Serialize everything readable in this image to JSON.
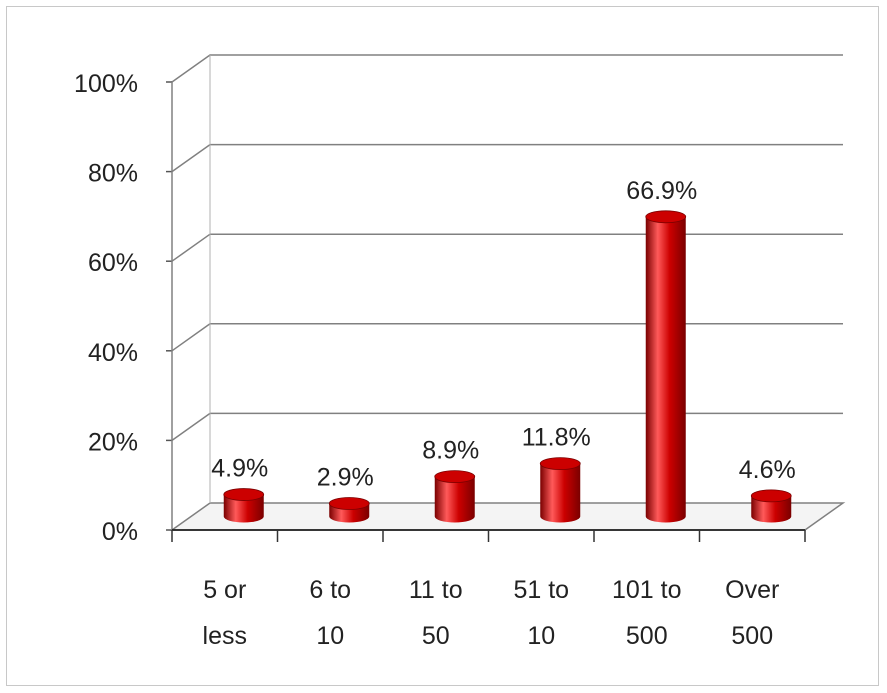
{
  "chart_data": {
    "type": "bar",
    "title": "",
    "xlabel": "",
    "ylabel": "",
    "categories": [
      [
        "5 or",
        "less"
      ],
      [
        "6 to",
        "10"
      ],
      [
        "11 to",
        "50"
      ],
      [
        "51 to",
        "10"
      ],
      [
        "101 to",
        "500"
      ],
      [
        "Over",
        "500"
      ]
    ],
    "values": [
      4.9,
      2.9,
      8.9,
      11.8,
      66.9,
      4.6
    ],
    "data_labels": [
      "4.9%",
      "2.9%",
      "8.9%",
      "11.8%",
      "66.9%",
      "4.6%"
    ],
    "ylim": [
      0,
      100
    ],
    "yticks": [
      "0%",
      "20%",
      "40%",
      "60%",
      "80%",
      "100%"
    ],
    "grid": true,
    "legend": "none",
    "bar_color": "#cc0000",
    "bar_highlight": "#ff5a5a",
    "bar_shadow": "#7a0000",
    "gridline_color": "#808080"
  }
}
